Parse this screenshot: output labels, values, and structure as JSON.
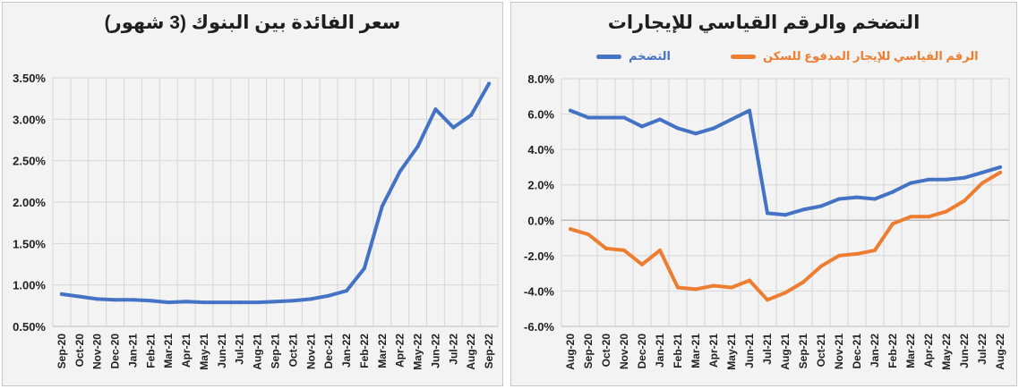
{
  "chart_data": [
    {
      "type": "line",
      "title": "سعر الفائدة بين البنوك (3 شهور)",
      "categories": [
        "Sep-20",
        "Oct-20",
        "Nov-20",
        "Dec-20",
        "Jan-21",
        "Feb-21",
        "Mar-21",
        "Apr-21",
        "May-21",
        "Jun-21",
        "Jul-21",
        "Aug-21",
        "Sep-21",
        "Oct-21",
        "Nov-21",
        "Dec-21",
        "Jan-22",
        "Feb-22",
        "Mar-22",
        "Apr-22",
        "May-22",
        "Jun-22",
        "Jul-22",
        "Aug-22",
        "Sep-22"
      ],
      "series": [
        {
          "values": [
            0.89,
            0.86,
            0.83,
            0.82,
            0.82,
            0.81,
            0.79,
            0.8,
            0.79,
            0.79,
            0.79,
            0.79,
            0.8,
            0.81,
            0.83,
            0.87,
            0.93,
            1.2,
            1.95,
            2.37,
            2.67,
            3.12,
            2.9,
            3.05,
            3.43
          ],
          "color": "#4472c4"
        }
      ],
      "ylim": [
        0.5,
        3.5
      ],
      "yticks": [
        "0.50%",
        "1.00%",
        "1.50%",
        "2.00%",
        "2.50%",
        "3.00%",
        "3.50%"
      ],
      "grid": true
    },
    {
      "type": "line",
      "title": "التضخم والرقم القياسي للإيجارات",
      "categories": [
        "Aug-20",
        "Sep-20",
        "Oct-20",
        "Nov-20",
        "Dec-20",
        "Jan-21",
        "Feb-21",
        "Mar-21",
        "Apr-21",
        "May-21",
        "Jun-21",
        "Jul-21",
        "Aug-21",
        "Sep-21",
        "Oct-21",
        "Nov-21",
        "Dec-21",
        "Jan-22",
        "Feb-22",
        "Mar-22",
        "Apr-22",
        "May-22",
        "Jun-22",
        "Jul-22",
        "Aug-22"
      ],
      "series": [
        {
          "name": "التضخم",
          "values": [
            6.2,
            5.8,
            5.8,
            5.8,
            5.3,
            5.7,
            5.2,
            4.9,
            5.2,
            5.7,
            6.2,
            0.4,
            0.3,
            0.6,
            0.8,
            1.2,
            1.3,
            1.2,
            1.6,
            2.1,
            2.3,
            2.3,
            2.4,
            2.7,
            3.0
          ],
          "color": "#4472c4"
        },
        {
          "name": "الرقم القياسي للإيجار المدفوع للسكن",
          "values": [
            -0.5,
            -0.8,
            -1.6,
            -1.7,
            -2.5,
            -1.7,
            -3.8,
            -3.9,
            -3.7,
            -3.8,
            -3.4,
            -4.5,
            -4.1,
            -3.5,
            -2.6,
            -2.0,
            -1.9,
            -1.7,
            -0.2,
            0.2,
            0.2,
            0.5,
            1.1,
            2.1,
            2.7
          ],
          "color": "#ed7d31"
        }
      ],
      "ylim": [
        -6,
        8
      ],
      "yticks": [
        "-6.0%",
        "-4.0%",
        "-2.0%",
        "0.0%",
        "2.0%",
        "4.0%",
        "6.0%",
        "8.0%"
      ],
      "legend": "top",
      "grid": true
    }
  ]
}
